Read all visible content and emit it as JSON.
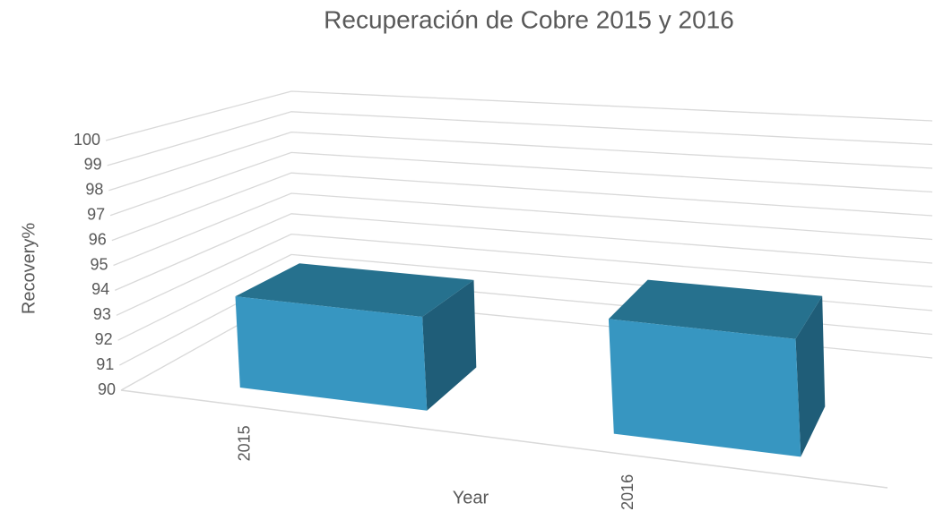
{
  "chart_data": {
    "type": "bar3d",
    "title": "Recuperación de Cobre 2015 y 2016",
    "x_label": "Year",
    "y_label": "Recovery%",
    "categories": [
      "2015",
      "2016"
    ],
    "values": [
      93.7,
      94.4
    ],
    "colors": {
      "front": "#3796c1",
      "top": "#26718e",
      "side": "#1f5d78"
    },
    "ylim": [
      90,
      100
    ],
    "yticks": [
      90,
      91,
      92,
      93,
      94,
      95,
      96,
      97,
      98,
      99,
      100
    ],
    "grid": true
  }
}
